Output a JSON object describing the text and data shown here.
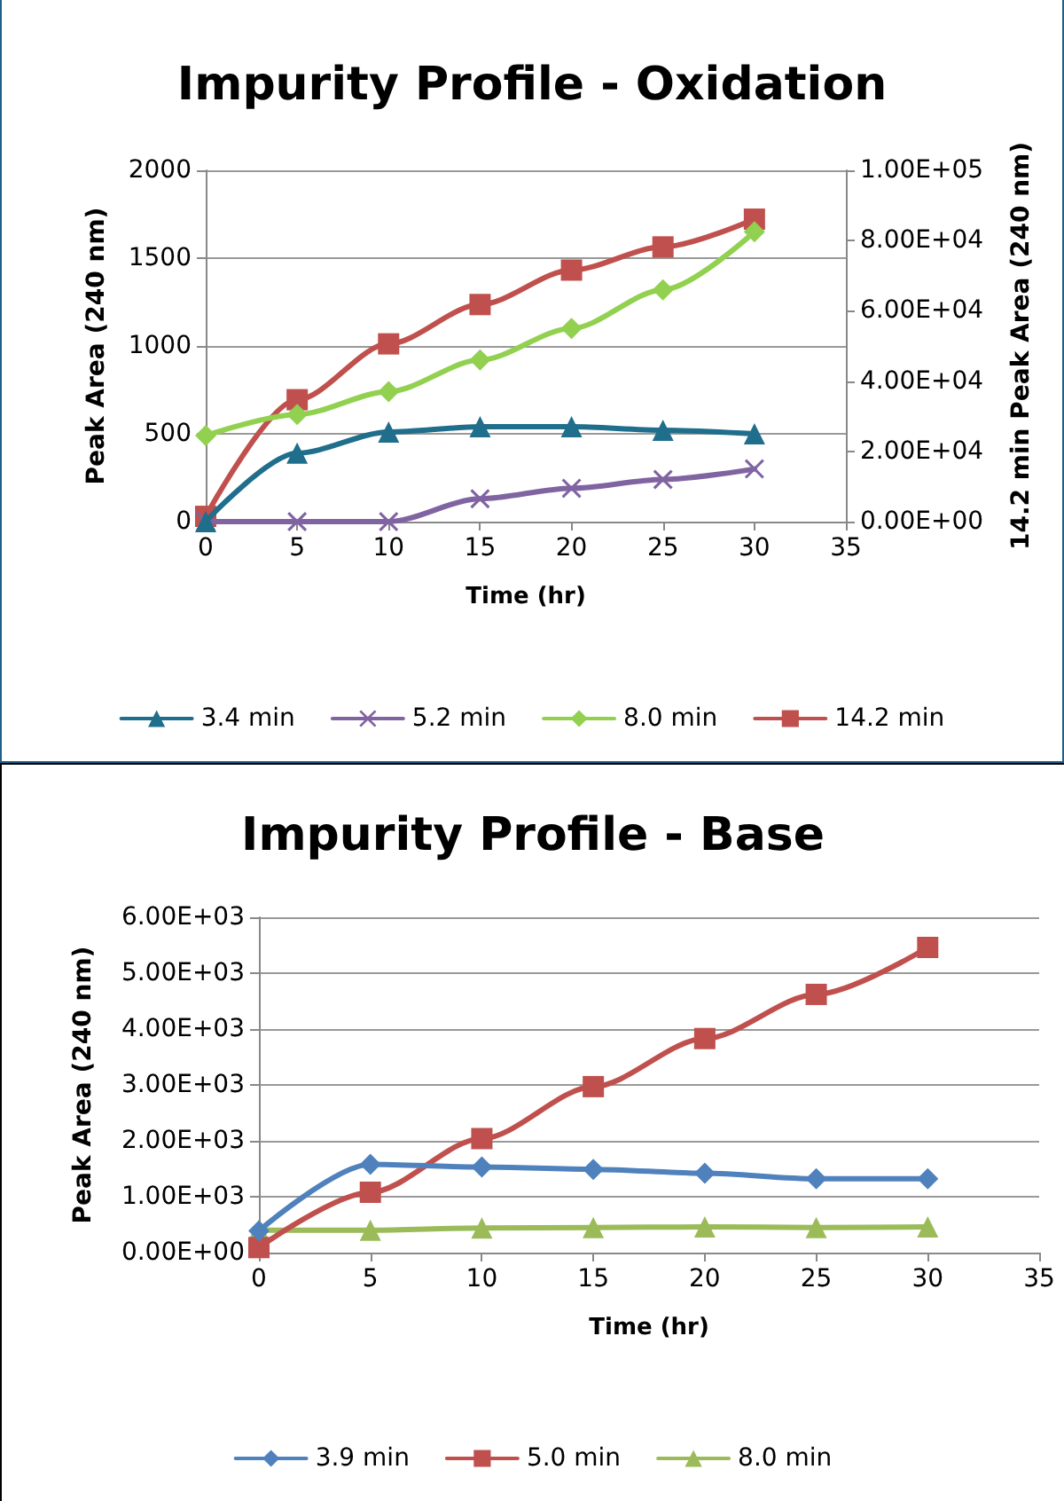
{
  "chart_data": [
    {
      "type": "line",
      "title": "Impurity Profile - Oxidation",
      "xlabel": "Time (hr)",
      "ylabel": "Peak Area (240 nm)",
      "y2label": "14.2 min Peak Area (240 nm)",
      "x": [
        0,
        5,
        10,
        15,
        20,
        25,
        30
      ],
      "series": [
        {
          "name": "3.4 min",
          "color": "#1f6e8c",
          "marker": "triangle",
          "values": [
            0,
            390,
            510,
            540,
            540,
            520,
            500
          ]
        },
        {
          "name": "5.2 min",
          "color": "#8064a2",
          "marker": "cross",
          "values": [
            0,
            0,
            0,
            130,
            190,
            240,
            300
          ]
        },
        {
          "name": "8.0 min",
          "color": "#92d050",
          "marker": "diamond",
          "values": [
            490,
            610,
            740,
            920,
            1100,
            1320,
            1650
          ]
        },
        {
          "name": "14.2 min",
          "color": "#c0504d",
          "marker": "square",
          "axis": "y2",
          "values": [
            1500,
            34700,
            50600,
            61800,
            71600,
            78200,
            86100
          ]
        }
      ],
      "xlim": [
        0,
        35
      ],
      "xticks": [
        0,
        5,
        10,
        15,
        20,
        25,
        30,
        35
      ],
      "ylim": [
        0,
        2000
      ],
      "yticks": [
        0,
        500,
        1000,
        1500,
        2000
      ],
      "y2lim": [
        0,
        100000
      ],
      "y2ticks": [
        {
          "value": 0,
          "label": "0.00E+00"
        },
        {
          "value": 20000,
          "label": "2.00E+04"
        },
        {
          "value": 40000,
          "label": "4.00E+04"
        },
        {
          "value": 60000,
          "label": "6.00E+04"
        },
        {
          "value": 80000,
          "label": "8.00E+04"
        },
        {
          "value": 100000,
          "label": "1.00E+05"
        }
      ],
      "grid": "y",
      "legend": "bottom"
    },
    {
      "type": "line",
      "title": "Impurity Profile - Base",
      "xlabel": "Time (hr)",
      "ylabel": "Peak Area (240 nm)",
      "x": [
        0,
        5,
        10,
        15,
        20,
        25,
        30
      ],
      "series": [
        {
          "name": "3.9 min",
          "color": "#4f81bd",
          "marker": "diamond",
          "values": [
            390,
            1580,
            1530,
            1490,
            1420,
            1320,
            1320
          ]
        },
        {
          "name": "5.0 min",
          "color": "#c0504d",
          "marker": "square",
          "values": [
            90,
            1080,
            2040,
            2970,
            3830,
            4620,
            5460
          ]
        },
        {
          "name": "8.0 min",
          "color": "#9bbb59",
          "marker": "triangle",
          "values": [
            400,
            400,
            440,
            450,
            460,
            450,
            460
          ]
        }
      ],
      "xlim": [
        0,
        35
      ],
      "xticks": [
        0,
        5,
        10,
        15,
        20,
        25,
        30,
        35
      ],
      "ylim": [
        0,
        6000
      ],
      "yticks": [
        {
          "value": 0,
          "label": "0.00E+00"
        },
        {
          "value": 1000,
          "label": "1.00E+03"
        },
        {
          "value": 2000,
          "label": "2.00E+03"
        },
        {
          "value": 3000,
          "label": "3.00E+03"
        },
        {
          "value": 4000,
          "label": "4.00E+03"
        },
        {
          "value": 5000,
          "label": "5.00E+03"
        },
        {
          "value": 6000,
          "label": "6.00E+03"
        }
      ],
      "grid": "y",
      "legend": "bottom"
    }
  ]
}
